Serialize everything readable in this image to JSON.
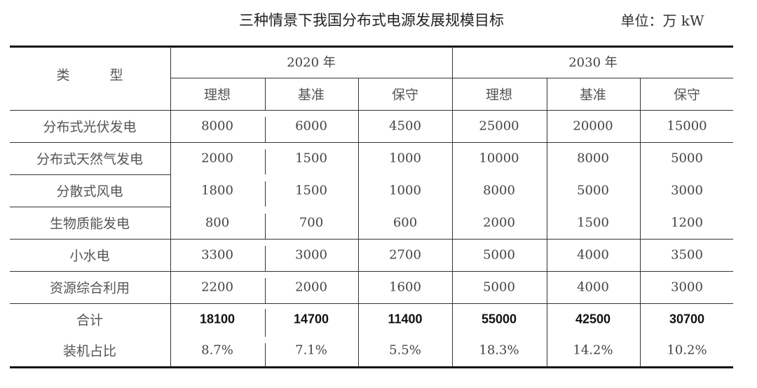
{
  "title": "三种情景下我国分布式电源发展规模目标",
  "unit": "单位：万 kW",
  "header": {
    "type_label": "类　　　型",
    "years": [
      "2020 年",
      "2030 年"
    ],
    "scenarios": [
      "理想",
      "基准",
      "保守",
      "理想",
      "基准",
      "保守"
    ]
  },
  "rows": [
    {
      "label": "分布式光伏发电",
      "values": [
        "8000",
        "6000",
        "4500",
        "25000",
        "20000",
        "15000"
      ]
    },
    {
      "label": "分布式天然气发电",
      "values": [
        "2000",
        "1500",
        "1000",
        "10000",
        "8000",
        "5000"
      ]
    },
    {
      "label": "分散式风电",
      "values": [
        "1800",
        "1500",
        "1000",
        "8000",
        "5000",
        "3000"
      ]
    },
    {
      "label": "生物质能发电",
      "values": [
        "800",
        "700",
        "600",
        "2000",
        "1500",
        "1200"
      ]
    },
    {
      "label": "小水电",
      "values": [
        "3300",
        "3000",
        "2700",
        "5000",
        "4000",
        "3500"
      ]
    },
    {
      "label": "资源综合利用",
      "values": [
        "2200",
        "2000",
        "1600",
        "5000",
        "4000",
        "3000"
      ]
    },
    {
      "label": "合计",
      "values": [
        "18100",
        "14700",
        "11400",
        "55000",
        "42500",
        "30700"
      ],
      "bold": true
    },
    {
      "label": "装机占比",
      "values": [
        "8.7%",
        "7.1%",
        "5.5%",
        "18.3%",
        "14.2%",
        "10.2%"
      ]
    }
  ]
}
